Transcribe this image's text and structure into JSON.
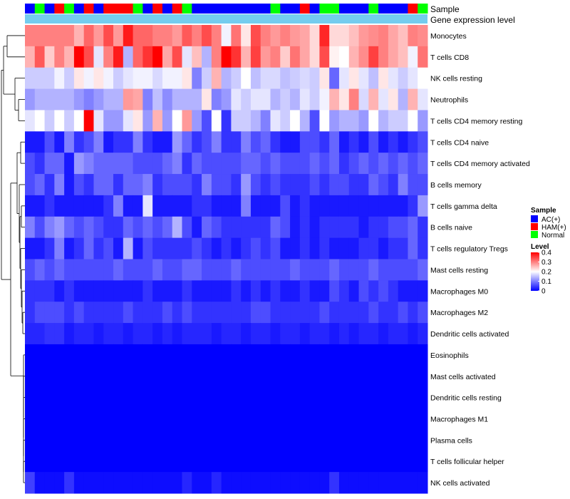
{
  "chart_data": {
    "type": "heatmap",
    "annotation_labels": {
      "sample": "Sample",
      "expression": "Gene expression level"
    },
    "groups": [
      {
        "name": "AC(+)",
        "color": "#0000FF"
      },
      {
        "name": "HAM(+)",
        "color": "#FF0000"
      },
      {
        "name": "Normal",
        "color": "#00FF00"
      }
    ],
    "sample_groups": [
      0,
      2,
      0,
      1,
      2,
      0,
      1,
      0,
      1,
      1,
      1,
      2,
      0,
      1,
      0,
      1,
      2,
      0,
      0,
      0,
      0,
      0,
      0,
      0,
      0,
      2,
      0,
      0,
      1,
      0,
      2,
      2,
      0,
      0,
      0,
      2,
      0,
      0,
      0,
      1,
      2
    ],
    "rows": [
      "Monocytes",
      "T cells CD8",
      "NK cells resting",
      "Neutrophils",
      "T cells CD4 memory resting",
      "T cells CD4 naive",
      "T cells CD4 memory activated",
      "B cells memory",
      "T cells gamma delta",
      "B cells naive",
      "T cells regulatory  Tregs",
      "Mast cells resting",
      "Macrophages M0",
      "Macrophages M2",
      "Dendritic cells activated",
      "Eosinophils",
      "Mast cells activated",
      "Dendritic cells resting",
      "Macrophages M1",
      "Plasma cells",
      "T cells follicular helper",
      "NK cells activated"
    ],
    "color_scale": {
      "title": "Level",
      "min": 0,
      "mid": 0.2,
      "max": 0.4,
      "ticks": [
        0,
        0.1,
        0.2,
        0.3,
        0.4
      ],
      "low": "#0000FF",
      "midColor": "#FFFFFF",
      "high": "#FF0000"
    },
    "values": [
      [
        0.3,
        0.3,
        0.3,
        0.3,
        0.3,
        0.26,
        0.32,
        0.28,
        0.34,
        0.28,
        0.38,
        0.32,
        0.32,
        0.3,
        0.3,
        0.28,
        0.33,
        0.3,
        0.34,
        0.3,
        0.19,
        0.31,
        0.22,
        0.34,
        0.3,
        0.28,
        0.3,
        0.28,
        0.27,
        0.23,
        0.37,
        0.23,
        0.23,
        0.25,
        0.28,
        0.29,
        0.3,
        0.27,
        0.25,
        0.3,
        0.29
      ],
      [
        0.26,
        0.33,
        0.24,
        0.3,
        0.26,
        0.4,
        0.34,
        0.18,
        0.3,
        0.38,
        0.14,
        0.32,
        0.36,
        0.4,
        0.27,
        0.34,
        0.18,
        0.25,
        0.14,
        0.3,
        0.4,
        0.36,
        0.26,
        0.35,
        0.28,
        0.3,
        0.24,
        0.31,
        0.27,
        0.23,
        0.34,
        0.21,
        0.2,
        0.26,
        0.29,
        0.35,
        0.3,
        0.27,
        0.25,
        0.19,
        0.31
      ],
      [
        0.16,
        0.16,
        0.16,
        0.19,
        0.16,
        0.22,
        0.19,
        0.22,
        0.19,
        0.16,
        0.18,
        0.19,
        0.19,
        0.17,
        0.19,
        0.19,
        0.22,
        0.1,
        0.16,
        0.26,
        0.14,
        0.16,
        0.2,
        0.15,
        0.17,
        0.17,
        0.15,
        0.16,
        0.17,
        0.16,
        0.22,
        0.08,
        0.18,
        0.22,
        0.18,
        0.15,
        0.22,
        0.18,
        0.16,
        0.18,
        0.2
      ],
      [
        0.12,
        0.14,
        0.14,
        0.14,
        0.14,
        0.12,
        0.1,
        0.12,
        0.14,
        0.14,
        0.28,
        0.27,
        0.1,
        0.15,
        0.11,
        0.14,
        0.14,
        0.14,
        0.22,
        0.1,
        0.12,
        0.18,
        0.16,
        0.18,
        0.18,
        0.14,
        0.16,
        0.14,
        0.18,
        0.16,
        0.19,
        0.26,
        0.22,
        0.3,
        0.17,
        0.26,
        0.18,
        0.22,
        0.14,
        0.26,
        0.18
      ],
      [
        0.18,
        0.2,
        0.16,
        0.2,
        0.16,
        0.2,
        0.4,
        0.18,
        0.12,
        0.12,
        0.18,
        0.22,
        0.12,
        0.26,
        0.12,
        0.2,
        0.28,
        0.12,
        0.06,
        0.2,
        0.04,
        0.16,
        0.16,
        0.14,
        0.1,
        0.18,
        0.16,
        0.2,
        0.14,
        0.06,
        0.2,
        0.12,
        0.14,
        0.14,
        0.12,
        0.2,
        0.14,
        0.16,
        0.16,
        0.2,
        0.12
      ],
      [
        0.02,
        0.02,
        0.06,
        0.02,
        0.1,
        0.04,
        0.06,
        0.1,
        0.02,
        0.04,
        0.04,
        0.1,
        0.04,
        0.02,
        0.02,
        0.12,
        0.08,
        0.04,
        0.06,
        0.1,
        0.04,
        0.04,
        0.1,
        0.06,
        0.08,
        0.04,
        0.02,
        0.02,
        0.06,
        0.06,
        0.04,
        0.08,
        0.02,
        0.04,
        0.02,
        0.06,
        0.02,
        0.04,
        0.02,
        0.04,
        0.06
      ],
      [
        0.06,
        0.04,
        0.08,
        0.08,
        0.02,
        0.12,
        0.1,
        0.08,
        0.08,
        0.08,
        0.08,
        0.06,
        0.06,
        0.06,
        0.08,
        0.1,
        0.04,
        0.08,
        0.06,
        0.06,
        0.06,
        0.06,
        0.08,
        0.08,
        0.06,
        0.08,
        0.06,
        0.06,
        0.06,
        0.08,
        0.06,
        0.08,
        0.04,
        0.06,
        0.08,
        0.06,
        0.08,
        0.06,
        0.08,
        0.06,
        0.08
      ],
      [
        0.06,
        0.08,
        0.04,
        0.1,
        0.02,
        0.06,
        0.04,
        0.08,
        0.08,
        0.04,
        0.08,
        0.08,
        0.1,
        0.04,
        0.06,
        0.06,
        0.06,
        0.04,
        0.1,
        0.06,
        0.06,
        0.04,
        0.12,
        0.06,
        0.04,
        0.06,
        0.04,
        0.04,
        0.04,
        0.06,
        0.04,
        0.06,
        0.06,
        0.04,
        0.04,
        0.08,
        0.06,
        0.04,
        0.1,
        0.06,
        0.06
      ],
      [
        0.02,
        0.02,
        0.04,
        0.02,
        0.02,
        0.02,
        0.02,
        0.02,
        0.04,
        0.1,
        0.02,
        0.02,
        0.18,
        0.02,
        0.02,
        0.02,
        0.02,
        0.04,
        0.04,
        0.02,
        0.02,
        0.02,
        0.1,
        0.02,
        0.02,
        0.02,
        0.06,
        0.02,
        0.04,
        0.02,
        0.02,
        0.02,
        0.02,
        0.02,
        0.02,
        0.02,
        0.02,
        0.02,
        0.02,
        0.04,
        0.12
      ],
      [
        0.1,
        0.06,
        0.1,
        0.12,
        0.08,
        0.06,
        0.08,
        0.06,
        0.04,
        0.04,
        0.08,
        0.06,
        0.08,
        0.06,
        0.08,
        0.14,
        0.06,
        0.02,
        0.08,
        0.06,
        0.04,
        0.04,
        0.04,
        0.04,
        0.04,
        0.08,
        0.06,
        0.02,
        0.04,
        0.02,
        0.04,
        0.04,
        0.04,
        0.04,
        0.02,
        0.04,
        0.04,
        0.06,
        0.06,
        0.08,
        0.04
      ],
      [
        0.02,
        0.02,
        0.04,
        0.1,
        0.02,
        0.04,
        0.08,
        0.04,
        0.06,
        0.02,
        0.14,
        0.02,
        0.06,
        0.04,
        0.04,
        0.04,
        0.04,
        0.06,
        0.04,
        0.02,
        0.04,
        0.02,
        0.04,
        0.06,
        0.04,
        0.06,
        0.02,
        0.02,
        0.04,
        0.02,
        0.04,
        0.02,
        0.02,
        0.02,
        0.04,
        0.04,
        0.02,
        0.04,
        0.04,
        0.08,
        0.04
      ],
      [
        0.06,
        0.08,
        0.06,
        0.08,
        0.06,
        0.06,
        0.06,
        0.06,
        0.06,
        0.08,
        0.06,
        0.06,
        0.06,
        0.08,
        0.06,
        0.06,
        0.08,
        0.08,
        0.06,
        0.06,
        0.06,
        0.08,
        0.06,
        0.06,
        0.06,
        0.06,
        0.06,
        0.08,
        0.06,
        0.06,
        0.06,
        0.08,
        0.06,
        0.06,
        0.06,
        0.08,
        0.06,
        0.06,
        0.06,
        0.06,
        0.08
      ],
      [
        0.04,
        0.04,
        0.04,
        0.02,
        0.04,
        0.02,
        0.02,
        0.02,
        0.02,
        0.02,
        0.02,
        0.02,
        0.04,
        0.02,
        0.02,
        0.02,
        0.04,
        0.02,
        0.02,
        0.02,
        0.02,
        0.04,
        0.02,
        0.04,
        0.02,
        0.04,
        0.02,
        0.02,
        0.04,
        0.02,
        0.02,
        0.06,
        0.04,
        0.02,
        0.06,
        0.04,
        0.06,
        0.04,
        0.02,
        0.02,
        0.02
      ],
      [
        0.04,
        0.06,
        0.06,
        0.06,
        0.04,
        0.06,
        0.04,
        0.04,
        0.04,
        0.04,
        0.06,
        0.04,
        0.04,
        0.04,
        0.06,
        0.04,
        0.06,
        0.04,
        0.04,
        0.04,
        0.04,
        0.04,
        0.04,
        0.06,
        0.06,
        0.04,
        0.04,
        0.04,
        0.04,
        0.04,
        0.06,
        0.04,
        0.04,
        0.04,
        0.04,
        0.06,
        0.04,
        0.04,
        0.06,
        0.04,
        0.06
      ],
      [
        0.03,
        0.03,
        0.04,
        0.04,
        0.02,
        0.03,
        0.03,
        0.02,
        0.03,
        0.03,
        0.02,
        0.03,
        0.03,
        0.02,
        0.03,
        0.02,
        0.03,
        0.03,
        0.03,
        0.02,
        0.03,
        0.03,
        0.02,
        0.03,
        0.03,
        0.02,
        0.03,
        0.03,
        0.02,
        0.03,
        0.03,
        0.02,
        0.03,
        0.02,
        0.03,
        0.03,
        0.02,
        0.03,
        0.03,
        0.02,
        0.03
      ],
      [
        0,
        0,
        0,
        0,
        0,
        0,
        0,
        0,
        0,
        0,
        0,
        0,
        0,
        0,
        0,
        0,
        0,
        0,
        0,
        0,
        0,
        0,
        0,
        0,
        0,
        0,
        0,
        0,
        0,
        0,
        0,
        0,
        0,
        0,
        0,
        0,
        0,
        0,
        0,
        0,
        0
      ],
      [
        0,
        0,
        0,
        0,
        0,
        0,
        0,
        0,
        0,
        0,
        0,
        0,
        0,
        0,
        0,
        0,
        0,
        0,
        0,
        0,
        0,
        0,
        0,
        0,
        0,
        0,
        0,
        0,
        0,
        0,
        0,
        0,
        0,
        0,
        0,
        0,
        0,
        0,
        0,
        0,
        0
      ],
      [
        0,
        0,
        0,
        0,
        0,
        0,
        0,
        0,
        0,
        0,
        0,
        0,
        0,
        0,
        0,
        0,
        0,
        0,
        0,
        0,
        0,
        0,
        0,
        0,
        0,
        0,
        0,
        0,
        0,
        0,
        0,
        0,
        0,
        0,
        0,
        0,
        0,
        0,
        0,
        0,
        0
      ],
      [
        0,
        0,
        0,
        0,
        0,
        0,
        0,
        0,
        0,
        0,
        0,
        0,
        0,
        0,
        0,
        0,
        0,
        0,
        0,
        0,
        0,
        0,
        0,
        0,
        0,
        0,
        0,
        0,
        0,
        0,
        0,
        0,
        0,
        0,
        0,
        0,
        0,
        0,
        0,
        0,
        0
      ],
      [
        0,
        0,
        0,
        0,
        0,
        0,
        0,
        0,
        0,
        0,
        0,
        0,
        0,
        0,
        0,
        0,
        0,
        0,
        0,
        0,
        0,
        0,
        0,
        0,
        0,
        0,
        0,
        0,
        0,
        0,
        0,
        0,
        0,
        0,
        0,
        0,
        0,
        0,
        0,
        0,
        0
      ],
      [
        0,
        0,
        0,
        0,
        0,
        0,
        0,
        0,
        0,
        0,
        0,
        0,
        0,
        0,
        0,
        0,
        0,
        0,
        0,
        0,
        0,
        0,
        0,
        0,
        0,
        0,
        0,
        0,
        0,
        0,
        0,
        0,
        0,
        0,
        0,
        0,
        0,
        0,
        0,
        0,
        0
      ],
      [
        0.05,
        0.01,
        0.01,
        0.01,
        0.04,
        0.01,
        0.01,
        0.01,
        0.01,
        0.01,
        0.01,
        0.01,
        0.01,
        0.01,
        0.01,
        0.01,
        0.03,
        0.01,
        0.01,
        0.03,
        0.01,
        0.01,
        0.01,
        0.01,
        0.01,
        0.01,
        0.01,
        0.01,
        0.01,
        0.01,
        0.01,
        0.04,
        0.01,
        0.01,
        0.01,
        0.01,
        0.01,
        0.01,
        0.01,
        0.01,
        0.01
      ]
    ],
    "expression_bar_color": "#74CCEE"
  }
}
